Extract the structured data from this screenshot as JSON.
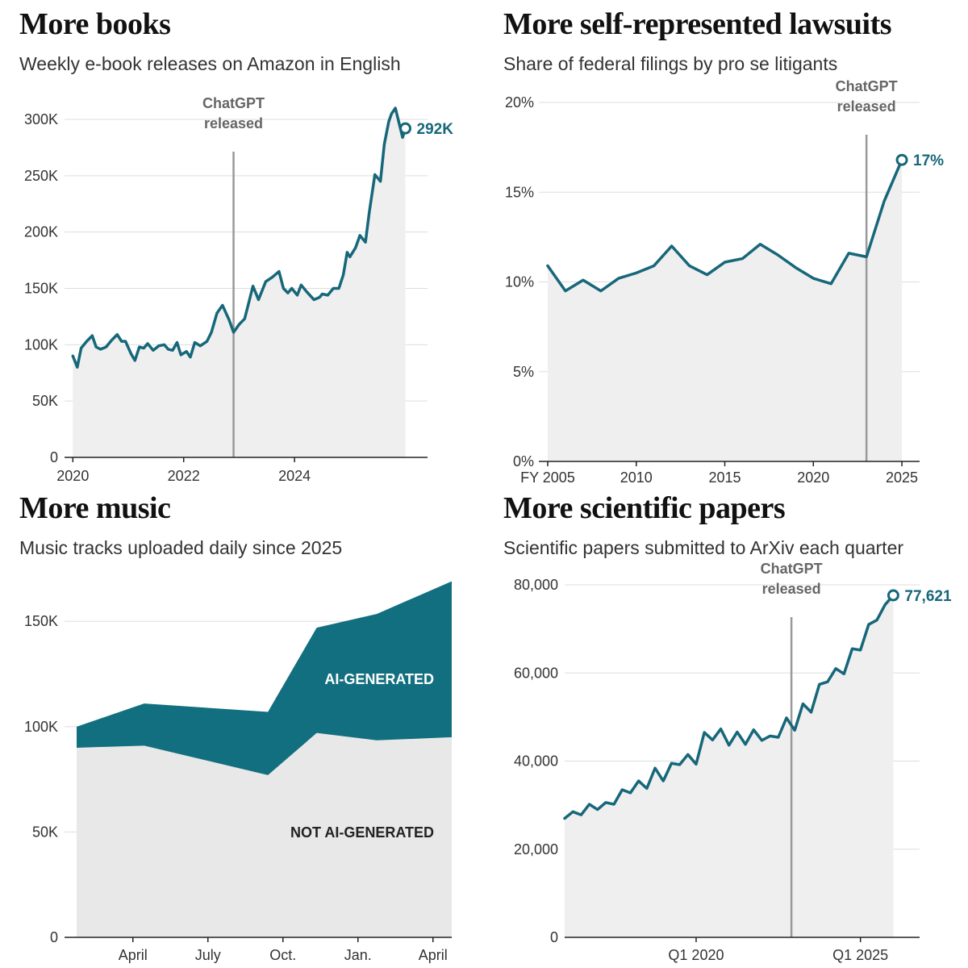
{
  "colors": {
    "line": "#17677a",
    "area": "#efefef",
    "ai": "#126f7f",
    "nonai": "#e8e8e8",
    "grid": "#dddddd",
    "annotation_line": "#999999"
  },
  "chart_data": [
    {
      "type": "line",
      "title": "More books",
      "subtitle": "Weekly e-book releases on Amazon in English",
      "xlim": [
        2019.85,
        2026.4
      ],
      "ylim": [
        0,
        300000
      ],
      "yticks": [
        0,
        50000,
        100000,
        150000,
        200000,
        250000,
        300000
      ],
      "ytick_labels": [
        "0",
        "50K",
        "100K",
        "150K",
        "200K",
        "250K",
        "300K"
      ],
      "xticks": [
        2020,
        2022,
        2024
      ],
      "xtick_labels": [
        "2020",
        "2022",
        "2024"
      ],
      "annotation": {
        "x": 2022.9,
        "lines": [
          "ChatGPT",
          "released"
        ]
      },
      "end_label": "292K",
      "x": [
        2020.0,
        2020.08,
        2020.15,
        2020.25,
        2020.35,
        2020.42,
        2020.5,
        2020.6,
        2020.7,
        2020.8,
        2020.88,
        2020.95,
        2021.05,
        2021.12,
        2021.2,
        2021.28,
        2021.35,
        2021.45,
        2021.55,
        2021.65,
        2021.72,
        2021.8,
        2021.88,
        2021.95,
        2022.05,
        2022.12,
        2022.2,
        2022.3,
        2022.42,
        2022.5,
        2022.6,
        2022.7,
        2022.82,
        2022.9,
        2023.0,
        2023.1,
        2023.25,
        2023.35,
        2023.48,
        2023.6,
        2023.72,
        2023.8,
        2023.88,
        2023.95,
        2024.05,
        2024.12,
        2024.22,
        2024.35,
        2024.45,
        2024.5,
        2024.6,
        2024.7,
        2024.8,
        2024.88,
        2024.95,
        2025.0,
        2025.1,
        2025.18,
        2025.28,
        2025.35,
        2025.45,
        2025.55,
        2025.62,
        2025.7,
        2025.75,
        2025.82,
        2025.95,
        2026.0
      ],
      "y": [
        90000,
        80000,
        97000,
        103000,
        108000,
        98000,
        96000,
        98000,
        104000,
        109000,
        103000,
        103000,
        92000,
        86000,
        98000,
        97000,
        101000,
        95000,
        99000,
        100000,
        96000,
        95000,
        102000,
        91000,
        94000,
        89000,
        102000,
        99000,
        103000,
        111000,
        128000,
        135000,
        122000,
        111000,
        118000,
        123000,
        152000,
        140000,
        156000,
        160000,
        165000,
        150000,
        146000,
        150000,
        144000,
        153000,
        147000,
        140000,
        142000,
        145000,
        144000,
        150000,
        150000,
        162000,
        182000,
        178000,
        186000,
        197000,
        191000,
        218000,
        251000,
        245000,
        278000,
        298000,
        305000,
        310000,
        284000,
        292000
      ]
    },
    {
      "type": "line",
      "title": "More self-represented lawsuits",
      "subtitle": "Share of federal filings by pro se litigants",
      "xlim": [
        2004.5,
        2026.0
      ],
      "ylim": [
        0,
        20
      ],
      "yticks": [
        0,
        5,
        10,
        15,
        20
      ],
      "ytick_labels": [
        "0%",
        "5%",
        "10%",
        "15%",
        "20%"
      ],
      "xticks": [
        2005,
        2010,
        2015,
        2020,
        2025
      ],
      "xtick_labels": [
        "FY 2005",
        "2010",
        "2015",
        "2020",
        "2025"
      ],
      "annotation": {
        "x": 2023,
        "lines": [
          "ChatGPT",
          "released"
        ]
      },
      "end_label": "17%",
      "x": [
        2005,
        2006,
        2007,
        2008,
        2009,
        2010,
        2011,
        2012,
        2013,
        2014,
        2015,
        2016,
        2017,
        2018,
        2019,
        2020,
        2021,
        2022,
        2023,
        2024,
        2025
      ],
      "y": [
        10.9,
        9.5,
        10.1,
        9.5,
        10.2,
        10.5,
        10.9,
        12.0,
        10.9,
        10.4,
        11.1,
        11.3,
        12.1,
        11.5,
        10.8,
        10.2,
        9.9,
        11.6,
        11.4,
        14.5,
        16.8
      ]
    },
    {
      "type": "area",
      "title": "More music",
      "subtitle": "Music tracks uploaded daily since 2025",
      "xlim": [
        0,
        5.0
      ],
      "ylim": [
        0,
        170000
      ],
      "yticks": [
        0,
        50000,
        100000,
        150000
      ],
      "ytick_labels": [
        "0",
        "50K",
        "100K",
        "150K"
      ],
      "xticks": [
        0.75,
        1.75,
        2.75,
        3.75,
        4.75
      ],
      "xtick_labels": [
        "April",
        "July",
        "Oct.",
        "Jan.",
        "April"
      ],
      "x": [
        0,
        0.9,
        2.55,
        3.2,
        4.0,
        5.0
      ],
      "series": [
        {
          "name": "NOT AI-GENERATED",
          "values": [
            90000,
            91000,
            77000,
            97000,
            93500,
            95000
          ]
        },
        {
          "name": "AI-GENERATED",
          "values": [
            10000,
            20000,
            30000,
            50000,
            60000,
            74000
          ]
        }
      ]
    },
    {
      "type": "line",
      "title": "More scientific papers",
      "subtitle": "Scientific papers submitted to ArXiv each quarter",
      "xlim": [
        2016.0,
        2026.8
      ],
      "ylim": [
        0,
        80000
      ],
      "yticks": [
        0,
        20000,
        40000,
        60000,
        80000
      ],
      "ytick_labels": [
        "0",
        "20,000",
        "40,000",
        "60,000",
        "80,000"
      ],
      "xticks": [
        2020,
        2025
      ],
      "xtick_labels": [
        "Q1 2020",
        "Q1 2025"
      ],
      "annotation": {
        "x": 2022.9,
        "lines": [
          "ChatGPT",
          "released"
        ]
      },
      "end_label": "77,621",
      "x": [
        2016.0,
        2016.25,
        2016.5,
        2016.75,
        2017.0,
        2017.25,
        2017.5,
        2017.75,
        2018.0,
        2018.25,
        2018.5,
        2018.75,
        2019.0,
        2019.25,
        2019.5,
        2019.75,
        2020.0,
        2020.25,
        2020.5,
        2020.75,
        2021.0,
        2021.25,
        2021.5,
        2021.75,
        2022.0,
        2022.25,
        2022.5,
        2022.75,
        2023.0,
        2023.25,
        2023.5,
        2023.75,
        2024.0,
        2024.25,
        2024.5,
        2024.75,
        2025.0,
        2025.25,
        2025.5,
        2025.75,
        2026.0
      ],
      "y": [
        27000,
        28500,
        27800,
        30200,
        29000,
        30600,
        30200,
        33500,
        32800,
        35500,
        33800,
        38400,
        35500,
        39500,
        39200,
        41500,
        39300,
        46500,
        44800,
        47300,
        43600,
        46600,
        43800,
        47100,
        44700,
        45700,
        45400,
        49800,
        47000,
        53000,
        51100,
        57400,
        58000,
        61000,
        59800,
        65500,
        65200,
        71000,
        72000,
        75500,
        77621
      ]
    }
  ]
}
